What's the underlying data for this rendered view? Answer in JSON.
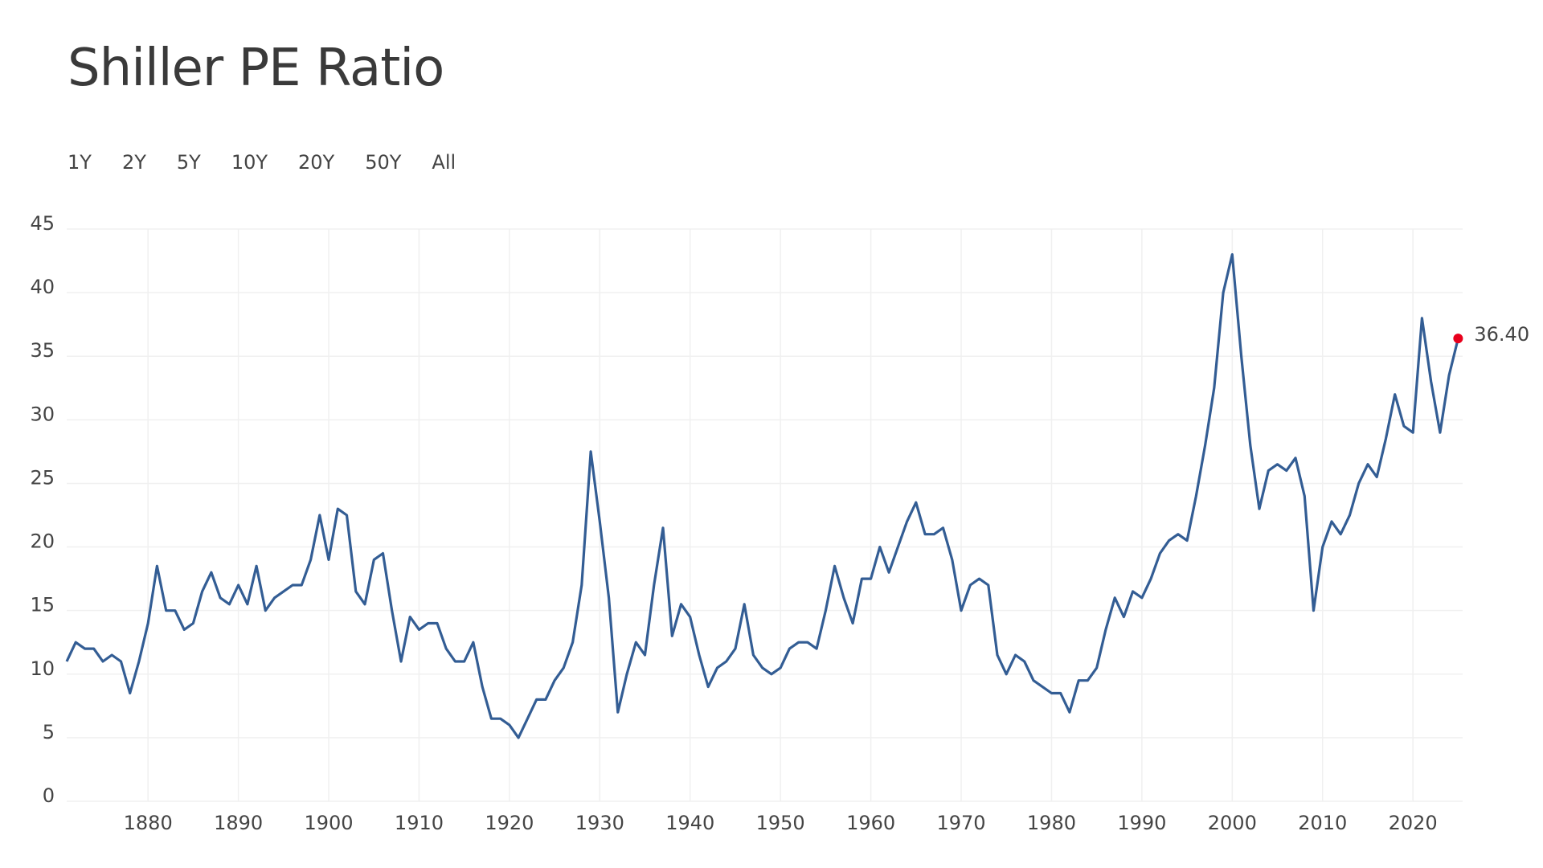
{
  "chart_data": {
    "type": "line",
    "title": "Shiller PE Ratio",
    "range_buttons": [
      "1Y",
      "2Y",
      "5Y",
      "10Y",
      "20Y",
      "50Y",
      "All"
    ],
    "x": [
      1871,
      1872,
      1873,
      1874,
      1875,
      1876,
      1877,
      1878,
      1879,
      1880,
      1881,
      1882,
      1883,
      1884,
      1885,
      1886,
      1887,
      1888,
      1889,
      1890,
      1891,
      1892,
      1893,
      1894,
      1895,
      1896,
      1897,
      1898,
      1899,
      1900,
      1901,
      1902,
      1903,
      1904,
      1905,
      1906,
      1907,
      1908,
      1909,
      1910,
      1911,
      1912,
      1913,
      1914,
      1915,
      1916,
      1917,
      1918,
      1919,
      1920,
      1921,
      1922,
      1923,
      1924,
      1925,
      1926,
      1927,
      1928,
      1929,
      1930,
      1931,
      1932,
      1933,
      1934,
      1935,
      1936,
      1937,
      1938,
      1939,
      1940,
      1941,
      1942,
      1943,
      1944,
      1945,
      1946,
      1947,
      1948,
      1949,
      1950,
      1951,
      1952,
      1953,
      1954,
      1955,
      1956,
      1957,
      1958,
      1959,
      1960,
      1961,
      1962,
      1963,
      1964,
      1965,
      1966,
      1967,
      1968,
      1969,
      1970,
      1971,
      1972,
      1973,
      1974,
      1975,
      1976,
      1977,
      1978,
      1979,
      1980,
      1981,
      1982,
      1983,
      1984,
      1985,
      1986,
      1987,
      1988,
      1989,
      1990,
      1991,
      1992,
      1993,
      1994,
      1995,
      1996,
      1997,
      1998,
      1999,
      2000,
      2001,
      2002,
      2003,
      2004,
      2005,
      2006,
      2007,
      2008,
      2009,
      2010,
      2011,
      2012,
      2013,
      2014,
      2015,
      2016,
      2017,
      2018,
      2019,
      2020,
      2021,
      2022,
      2023,
      2024,
      2025
    ],
    "series": [
      {
        "name": "Shiller PE Ratio",
        "color": "#335d94",
        "values": [
          11,
          12.5,
          12,
          12,
          11,
          11.5,
          11,
          8.5,
          11,
          14,
          18.5,
          15,
          15,
          13.5,
          14,
          16.5,
          18,
          16,
          15.5,
          17,
          15.5,
          18.5,
          15,
          16,
          16.5,
          17,
          17,
          19,
          22.5,
          19,
          23,
          22.5,
          16.5,
          15.5,
          19,
          19.5,
          15,
          11,
          14.5,
          13.5,
          14,
          14,
          12,
          11,
          11,
          12.5,
          9,
          6.5,
          6.5,
          6,
          5,
          6.5,
          8,
          8,
          9.5,
          10.5,
          12.5,
          17,
          27.5,
          22,
          16,
          7,
          10,
          12.5,
          11.5,
          17,
          21.5,
          13,
          15.5,
          14.5,
          11.5,
          9,
          10.5,
          11,
          12,
          15.5,
          11.5,
          10.5,
          10,
          10.5,
          12,
          12.5,
          12.5,
          12,
          15,
          18.5,
          16,
          14,
          17.5,
          17.5,
          20,
          18,
          20,
          22,
          23.5,
          21,
          21,
          21.5,
          19,
          15,
          17,
          17.5,
          17,
          11.5,
          10,
          11.5,
          11,
          9.5,
          9,
          8.5,
          8.5,
          7,
          9.5,
          9.5,
          10.5,
          13.5,
          16,
          14.5,
          16.5,
          16,
          17.5,
          19.5,
          20.5,
          21,
          20.5,
          24,
          28,
          32.5,
          40,
          43,
          35,
          28,
          23,
          26,
          26.5,
          26,
          27,
          24,
          15,
          20,
          22,
          21,
          22.5,
          25,
          26.5,
          25.5,
          28.5,
          32,
          29.5,
          29,
          38,
          33,
          29,
          33.5,
          36.4
        ]
      }
    ],
    "annotation": {
      "x": 2025,
      "value": 36.4,
      "label": "36.40",
      "color": "#e8001c"
    },
    "xlim": [
      1871,
      2025.5
    ],
    "xticks": [
      1880,
      1890,
      1900,
      1910,
      1920,
      1930,
      1940,
      1950,
      1960,
      1970,
      1980,
      1990,
      2000,
      2010,
      2020
    ],
    "ylim": [
      0,
      45
    ],
    "yticks": [
      0,
      5,
      10,
      15,
      20,
      25,
      30,
      35,
      40,
      45
    ],
    "grid": true
  }
}
